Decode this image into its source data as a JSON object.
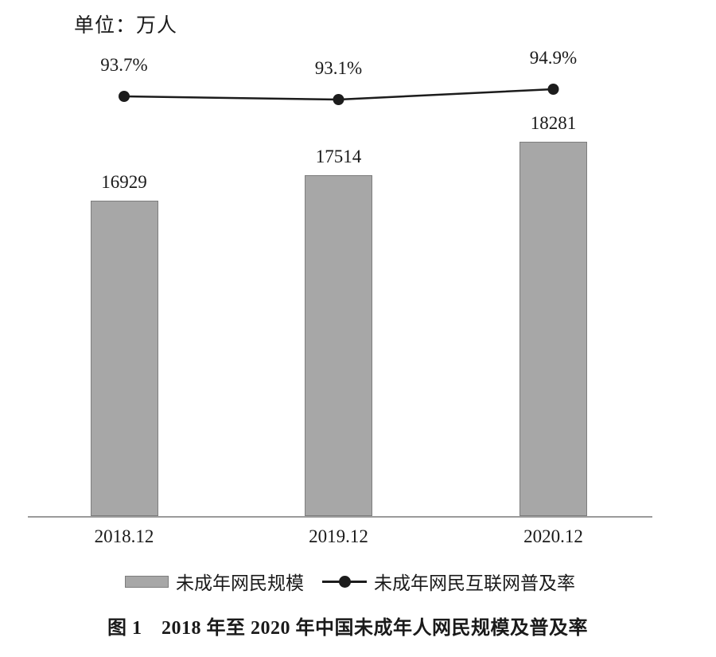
{
  "unit_label": "单位：万人",
  "caption": "图 1　2018 年至 2020 年中国未成年人网民规模及普及率",
  "colors": {
    "bar_fill": "#a7a7a7",
    "bar_border": "#7d7d7d",
    "line": "#1c1c1c",
    "dot": "#1c1c1c",
    "axis": "#9b9b9b",
    "text": "#1a1a1a"
  },
  "chart_data": {
    "type": "bar+line combo",
    "title": "图 1　2018 年至 2020 年中国未成年人网民规模及普及率",
    "unit_note": "单位：万人",
    "categories": [
      "2018.12",
      "2019.12",
      "2020.12"
    ],
    "series": [
      {
        "name": "未成年网民规模",
        "type": "bar",
        "unit": "万人",
        "values": [
          16929,
          17514,
          18281
        ],
        "value_labels": [
          "16929",
          "17514",
          "18281"
        ]
      },
      {
        "name": "未成年网民互联网普及率",
        "type": "line",
        "unit": "%",
        "values": [
          93.7,
          93.1,
          94.9
        ],
        "value_labels": [
          "93.7%",
          "93.1%",
          "94.9%"
        ]
      }
    ],
    "legend_position": "bottom",
    "gridlines": false,
    "y_axis_visible": false,
    "data_labels_visible": true
  }
}
